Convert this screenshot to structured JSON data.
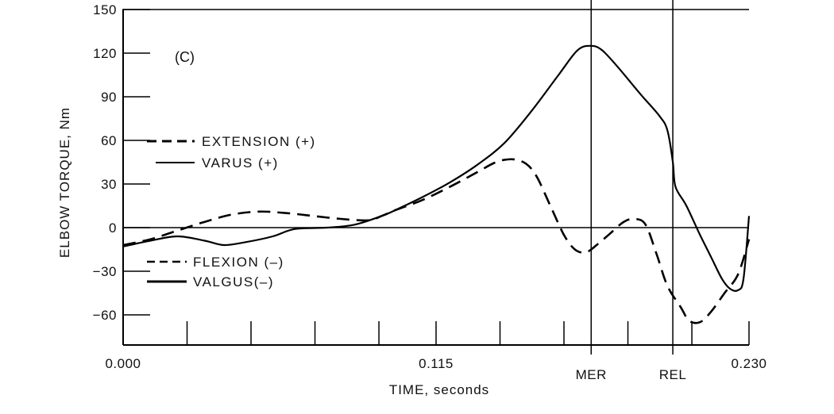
{
  "chart_data": {
    "type": "line",
    "panel_label": "(C)",
    "xlabel": "TIME, seconds",
    "ylabel": "ELBOW TORQUE, Nm",
    "xlim": [
      0,
      0.23
    ],
    "ylim": [
      -75,
      150
    ],
    "y_ticks": [
      150,
      120,
      90,
      60,
      30,
      0,
      -30,
      -60
    ],
    "y_tick_labels": [
      "150",
      "120",
      "90",
      "60",
      "30",
      "0",
      "−30",
      "−60"
    ],
    "x_tick_labels": [
      {
        "x": 0.0,
        "label": "0.000"
      },
      {
        "x": 0.115,
        "label": "0.115"
      },
      {
        "x": 0.23,
        "label": "0.230"
      }
    ],
    "x_minor_ticks": [
      0.0235,
      0.047,
      0.0705,
      0.094,
      0.115,
      0.1385,
      0.162,
      0.1855,
      0.209,
      0.23
    ],
    "events": [
      {
        "name": "MER",
        "x": 0.172
      },
      {
        "name": "REL",
        "x": 0.202
      }
    ],
    "legend": [
      {
        "label": "EXTENSION (+)",
        "style": "dashed",
        "position": "upper-left"
      },
      {
        "label": "VARUS (+)",
        "style": "solid",
        "position": "upper-left"
      },
      {
        "label": "FLEXION (–)",
        "style": "dashed",
        "position": "lower-left"
      },
      {
        "label": "VALGUS(–)",
        "style": "solid",
        "position": "lower-left"
      }
    ],
    "series": [
      {
        "name": "Extension/Flexion",
        "style": "dashed",
        "points": [
          [
            0.0,
            -12
          ],
          [
            0.01,
            -8
          ],
          [
            0.02,
            -2
          ],
          [
            0.03,
            4
          ],
          [
            0.04,
            9
          ],
          [
            0.05,
            11
          ],
          [
            0.06,
            10
          ],
          [
            0.07,
            8
          ],
          [
            0.08,
            6
          ],
          [
            0.09,
            5
          ],
          [
            0.095,
            8
          ],
          [
            0.1,
            12
          ],
          [
            0.11,
            19
          ],
          [
            0.12,
            28
          ],
          [
            0.13,
            38
          ],
          [
            0.137,
            45
          ],
          [
            0.143,
            47
          ],
          [
            0.148,
            44
          ],
          [
            0.152,
            35
          ],
          [
            0.157,
            15
          ],
          [
            0.162,
            -5
          ],
          [
            0.166,
            -15
          ],
          [
            0.17,
            -17
          ],
          [
            0.174,
            -12
          ],
          [
            0.179,
            -4
          ],
          [
            0.184,
            4
          ],
          [
            0.188,
            6
          ],
          [
            0.192,
            2
          ],
          [
            0.196,
            -18
          ],
          [
            0.2,
            -40
          ],
          [
            0.205,
            -55
          ],
          [
            0.208,
            -64
          ],
          [
            0.212,
            -65
          ],
          [
            0.216,
            -58
          ],
          [
            0.221,
            -45
          ],
          [
            0.226,
            -32
          ],
          [
            0.23,
            -8
          ]
        ]
      },
      {
        "name": "Varus/Valgus",
        "style": "solid",
        "points": [
          [
            0.0,
            -13
          ],
          [
            0.01,
            -9
          ],
          [
            0.02,
            -6
          ],
          [
            0.03,
            -9
          ],
          [
            0.037,
            -12
          ],
          [
            0.045,
            -10
          ],
          [
            0.055,
            -6
          ],
          [
            0.063,
            -1
          ],
          [
            0.075,
            0
          ],
          [
            0.085,
            2
          ],
          [
            0.095,
            8
          ],
          [
            0.1,
            12
          ],
          [
            0.11,
            21
          ],
          [
            0.12,
            31
          ],
          [
            0.13,
            43
          ],
          [
            0.14,
            58
          ],
          [
            0.15,
            80
          ],
          [
            0.16,
            105
          ],
          [
            0.167,
            122
          ],
          [
            0.172,
            125
          ],
          [
            0.176,
            122
          ],
          [
            0.182,
            110
          ],
          [
            0.19,
            92
          ],
          [
            0.197,
            77
          ],
          [
            0.2,
            67
          ],
          [
            0.202,
            45
          ],
          [
            0.203,
            28
          ],
          [
            0.207,
            15
          ],
          [
            0.212,
            -5
          ],
          [
            0.216,
            -20
          ],
          [
            0.22,
            -35
          ],
          [
            0.223,
            -42
          ],
          [
            0.226,
            -43
          ],
          [
            0.228,
            -35
          ],
          [
            0.23,
            8
          ]
        ]
      }
    ]
  }
}
